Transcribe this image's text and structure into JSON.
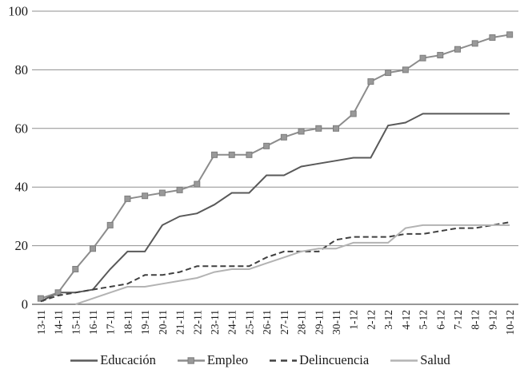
{
  "chart_data": {
    "type": "line",
    "title": "",
    "xlabel": "",
    "ylabel": "",
    "grid": "horizontal",
    "legend_position": "bottom",
    "x_labels": [
      "13-11",
      "14-11",
      "15-11",
      "16-11",
      "17-11",
      "18-11",
      "19-11",
      "20-11",
      "21-11",
      "22-11",
      "23-11",
      "24-11",
      "25-11",
      "26-11",
      "27-11",
      "28-11",
      "29-11",
      "30-11",
      "1-12",
      "2-12",
      "3-12",
      "4-12",
      "5-12",
      "6-12",
      "7-12",
      "8-12",
      "9-12",
      "10-12"
    ],
    "y_axis": {
      "min": 0,
      "max": 100,
      "step": 20,
      "tick_labels": [
        "0",
        "20",
        "40",
        "60",
        "80",
        "100"
      ]
    },
    "series": [
      {
        "name": "Educación",
        "color": "#595959",
        "line_style": "solid",
        "marker": "none",
        "values": [
          1,
          4,
          4,
          5,
          12,
          18,
          18,
          27,
          30,
          31,
          34,
          38,
          38,
          44,
          44,
          47,
          48,
          49,
          50,
          50,
          61,
          62,
          65,
          65,
          65,
          65,
          65,
          65
        ]
      },
      {
        "name": "Empleo",
        "color": "#8c8c8c",
        "line_style": "solid",
        "marker": "square",
        "marker_fill": "#999999",
        "marker_stroke": "#7d7d7d",
        "values": [
          2,
          4,
          12,
          19,
          27,
          36,
          37,
          38,
          39,
          41,
          51,
          51,
          51,
          54,
          57,
          59,
          60,
          60,
          65,
          76,
          79,
          80,
          84,
          85,
          87,
          89,
          91,
          92
        ]
      },
      {
        "name": "Delincuencia",
        "color": "#404040",
        "line_style": "dashed",
        "marker": "none",
        "values": [
          1,
          3,
          4,
          5,
          6,
          7,
          10,
          10,
          11,
          13,
          13,
          13,
          13,
          16,
          18,
          18,
          18,
          22,
          23,
          23,
          23,
          24,
          24,
          25,
          26,
          26,
          27,
          28
        ]
      },
      {
        "name": "Salud",
        "color": "#b3b3b3",
        "line_style": "solid",
        "marker": "none",
        "values": [
          null,
          null,
          0,
          2,
          4,
          6,
          6,
          7,
          8,
          9,
          11,
          12,
          12,
          14,
          16,
          18,
          19,
          19,
          21,
          21,
          21,
          26,
          27,
          27,
          27,
          27,
          27,
          27
        ]
      }
    ]
  },
  "colors": {
    "grid": "#8f8f8f",
    "axis": "#595959",
    "background": "#ffffff"
  }
}
